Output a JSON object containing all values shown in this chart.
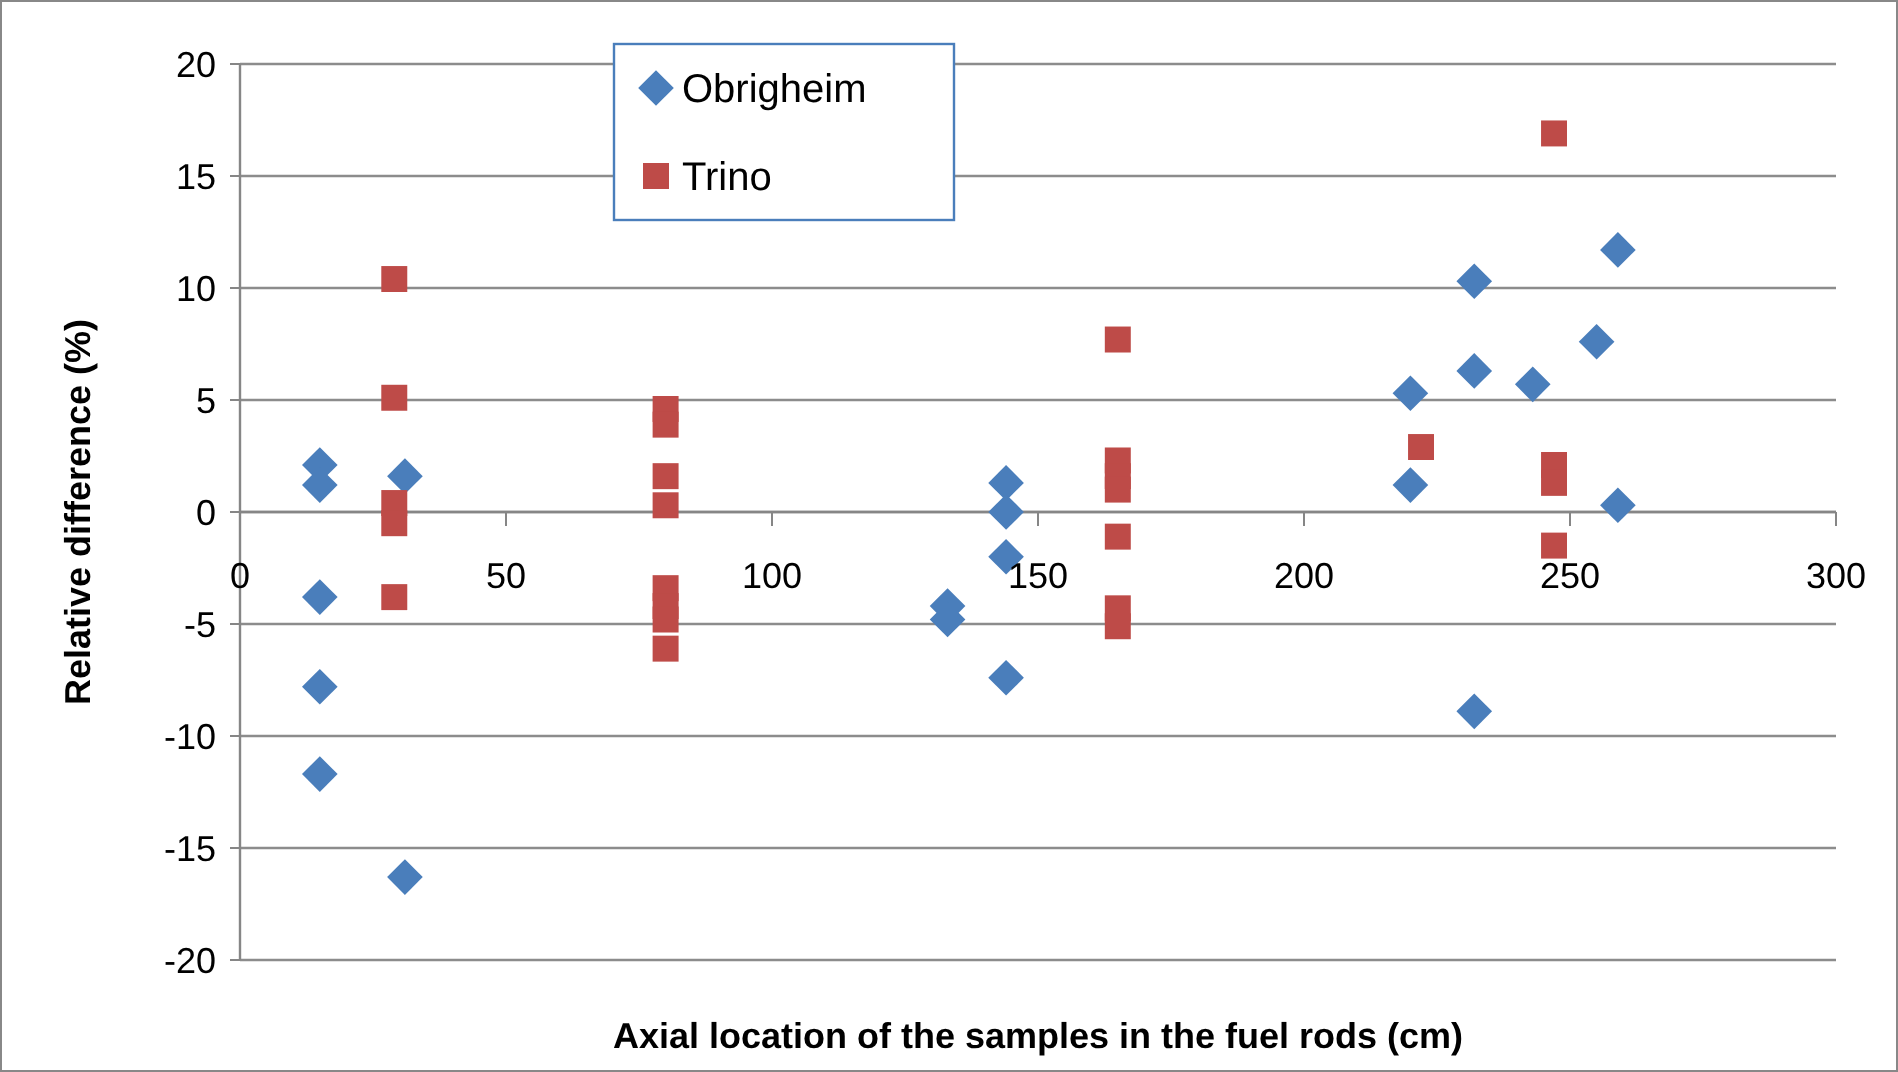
{
  "chart_data": {
    "type": "scatter",
    "xlabel": "Axial location of the samples in the fuel rods (cm)",
    "ylabel": "Relative difference (%)",
    "xlim": [
      0,
      300
    ],
    "xticks": [
      0,
      50,
      100,
      150,
      200,
      250,
      300
    ],
    "ylim": [
      -20,
      20
    ],
    "yticks": [
      -20,
      -15,
      -10,
      -5,
      0,
      5,
      10,
      15,
      20
    ],
    "grid": "y",
    "legend": "top",
    "series": [
      {
        "name": "Obrigheim",
        "color": "#4a7ebb",
        "marker": "diamond",
        "x": [
          15,
          15,
          15,
          15,
          15,
          31,
          31,
          133,
          133,
          144,
          144,
          144,
          144,
          220,
          220,
          232,
          232,
          232,
          243,
          255,
          259,
          259
        ],
        "values": [
          2.1,
          1.2,
          -3.8,
          -7.8,
          -11.7,
          1.6,
          -16.3,
          -4.2,
          -4.8,
          1.3,
          0,
          -2,
          -7.4,
          5.3,
          1.2,
          10.3,
          6.3,
          -8.9,
          5.7,
          7.6,
          11.7,
          0.3
        ]
      },
      {
        "name": "Trino",
        "color": "#be4b48",
        "marker": "square",
        "x": [
          29,
          29,
          29,
          29,
          29,
          80,
          80,
          80,
          80,
          80,
          80,
          80,
          80,
          165,
          165,
          165,
          165,
          165,
          165,
          165,
          222,
          247,
          247,
          247,
          247
        ],
        "values": [
          10.4,
          5.1,
          0.4,
          -0.5,
          -3.8,
          4.6,
          3.9,
          1.6,
          0.3,
          -3.4,
          -4.2,
          -4.8,
          -6.1,
          7.7,
          2.3,
          1.6,
          1,
          -1.1,
          -4.3,
          -5.1,
          2.9,
          16.9,
          2.1,
          1.3,
          -1.5
        ]
      }
    ]
  }
}
